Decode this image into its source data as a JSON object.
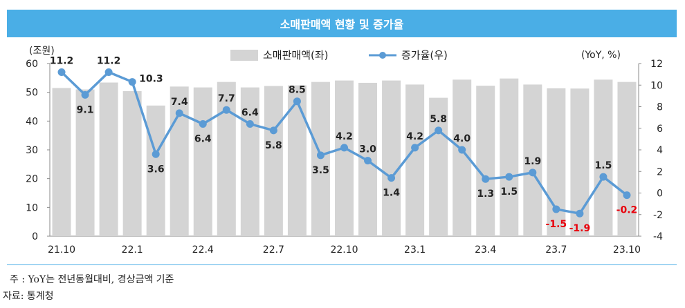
{
  "title": "소매판매액 현황 및 증가율",
  "note": "주 : YoY는 전년동월대비, 경상금액 기준",
  "source": "자료: 통계청",
  "chart_data": {
    "type": "bar+line",
    "left_axis_unit": "(조원)",
    "right_axis_unit": "(YoY, %)",
    "ylim_left": [
      0,
      60
    ],
    "yticks_left": [
      "0",
      "10",
      "20",
      "30",
      "40",
      "50",
      "60"
    ],
    "ylim_right": [
      -4,
      12
    ],
    "yticks_right": [
      "-4",
      "-2",
      "0",
      "2",
      "4",
      "6",
      "8",
      "10",
      "12"
    ],
    "x_tick_labels": [
      {
        "index": 0,
        "label": "21.10"
      },
      {
        "index": 3,
        "label": "22.1"
      },
      {
        "index": 6,
        "label": "22.4"
      },
      {
        "index": 9,
        "label": "22.7"
      },
      {
        "index": 12,
        "label": "22.10"
      },
      {
        "index": 15,
        "label": "23.1"
      },
      {
        "index": 18,
        "label": "23.4"
      },
      {
        "index": 21,
        "label": "23.7"
      },
      {
        "index": 24,
        "label": "23.10"
      }
    ],
    "legend": {
      "bar": "소매판매액(좌)",
      "line": "증가율(우)"
    },
    "colors": {
      "bar": "#d4d4d4",
      "line": "#5b9bd5",
      "negative_label": "#e8000b",
      "label": "#222222"
    },
    "bar_values": [
      51.5,
      51.0,
      53.4,
      50.4,
      45.4,
      52.0,
      51.7,
      53.6,
      51.7,
      52.2,
      52.4,
      53.6,
      54.1,
      53.3,
      54.1,
      52.7,
      48.1,
      54.4,
      52.3,
      54.8,
      52.7,
      51.4,
      51.3,
      54.4,
      53.6
    ],
    "line_values": [
      11.2,
      9.1,
      11.2,
      10.3,
      3.6,
      7.4,
      6.4,
      7.7,
      6.4,
      5.8,
      8.5,
      3.5,
      4.2,
      3.0,
      1.4,
      4.2,
      5.8,
      4.0,
      1.3,
      1.5,
      1.9,
      -1.5,
      -1.9,
      1.5,
      -0.2
    ],
    "line_labels": [
      "11.2",
      "9.1",
      "11.2",
      "10.3",
      "3.6",
      "7.4",
      "6.4",
      "7.7",
      "6.4",
      "5.8",
      "8.5",
      "3.5",
      "4.2",
      "3.0",
      "1.4",
      "4.2",
      "5.8",
      "4.0",
      "1.3",
      "1.5",
      "1.9",
      "-1.5",
      "-1.9",
      "1.5",
      "-0.2"
    ],
    "label_positions": [
      "above",
      "below",
      "above",
      "right",
      "below",
      "above",
      "below",
      "above",
      "above",
      "below",
      "above",
      "below",
      "above",
      "above",
      "below",
      "above",
      "above",
      "above",
      "below",
      "below",
      "above",
      "below",
      "below",
      "above",
      "below"
    ]
  }
}
